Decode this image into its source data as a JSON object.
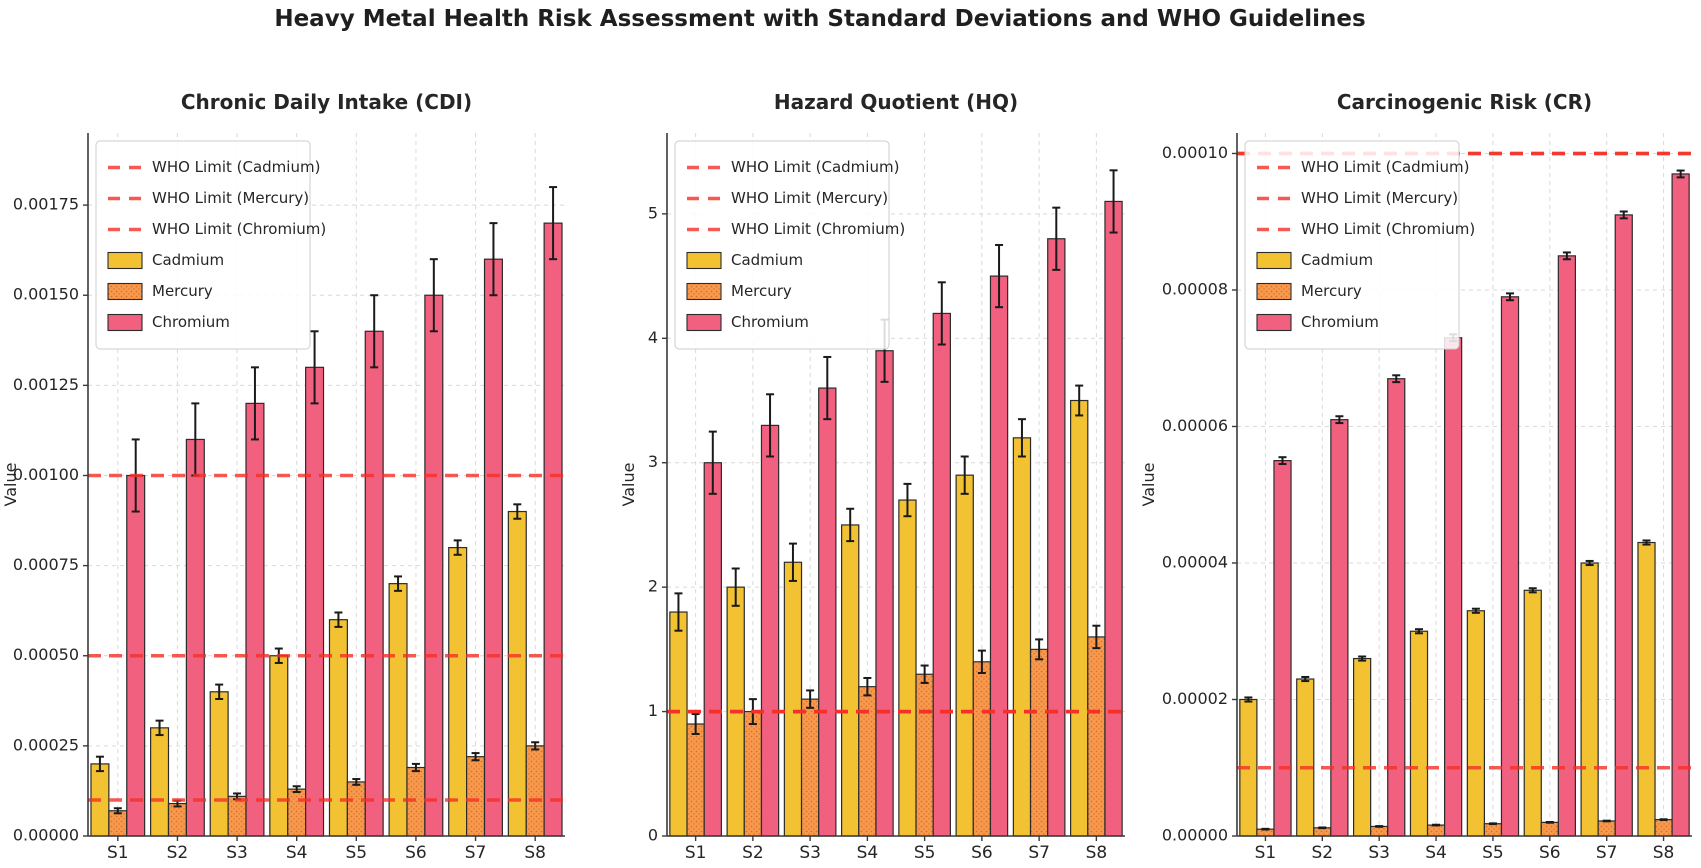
{
  "figure": {
    "title": "Heavy Metal Health Risk Assessment with Standard Deviations and WHO Guidelines",
    "background": "#ffffff"
  },
  "colors": {
    "cadmium": "#F3C233",
    "mercury": "#F79A4D",
    "mercury_dot": "#DD6F2A",
    "chromium": "#F2607F",
    "who_line": "#F53028",
    "bar_edge": "#2b2b2b",
    "error_bar": "#1a1a1a",
    "grid": "#d9d9d9",
    "axis": "#3a3a3a",
    "text": "#262626",
    "legend_border": "#cccccc",
    "legend_bg": "rgba(255,255,255,0.85)"
  },
  "legend": {
    "entries": [
      {
        "type": "line",
        "label": "WHO Limit (Cadmium)"
      },
      {
        "type": "line",
        "label": "WHO Limit (Mercury)"
      },
      {
        "type": "line",
        "label": "WHO Limit (Chromium)"
      },
      {
        "type": "patch",
        "label": "Cadmium",
        "color_key": "cadmium"
      },
      {
        "type": "patch",
        "label": "Mercury",
        "color_key": "mercury"
      },
      {
        "type": "patch",
        "label": "Chromium",
        "color_key": "chromium"
      }
    ]
  },
  "chart_data": [
    {
      "type": "bar",
      "title": "Chronic Daily Intake (CDI)",
      "ylabel": "Value",
      "xlabel": "",
      "categories": [
        "S1",
        "S2",
        "S3",
        "S4",
        "S5",
        "S6",
        "S7",
        "S8"
      ],
      "ylim": [
        0,
        0.00195
      ],
      "yticks": [
        0,
        0.00025,
        0.0005,
        0.00075,
        0.001,
        0.00125,
        0.0015,
        0.00175
      ],
      "ytick_labels": [
        "0.00000",
        "0.00025",
        "0.00050",
        "0.00075",
        "0.00100",
        "0.00125",
        "0.00150",
        "0.00175"
      ],
      "grid": true,
      "legend_position": "upper-left",
      "series": [
        {
          "name": "Cadmium",
          "color_key": "cadmium",
          "values": [
            0.0002,
            0.0003,
            0.0004,
            0.0005,
            0.0006,
            0.0007,
            0.0008,
            0.0009
          ],
          "errors": [
            2e-05,
            2e-05,
            2e-05,
            2e-05,
            2e-05,
            2e-05,
            2e-05,
            2e-05
          ]
        },
        {
          "name": "Mercury",
          "color_key": "mercury",
          "values": [
            7e-05,
            9e-05,
            0.00011,
            0.00013,
            0.00015,
            0.00019,
            0.00022,
            0.00025
          ],
          "errors": [
            7e-06,
            8e-06,
            8e-06,
            8e-06,
            8e-06,
            1e-05,
            1e-05,
            1e-05
          ]
        },
        {
          "name": "Chromium",
          "color_key": "chromium",
          "values": [
            0.001,
            0.0011,
            0.0012,
            0.0013,
            0.0014,
            0.0015,
            0.0016,
            0.0017
          ],
          "errors": [
            0.0001,
            0.0001,
            0.0001,
            0.0001,
            0.0001,
            0.0001,
            0.0001,
            0.0001
          ]
        }
      ],
      "who_limits": [
        {
          "label": "WHO Limit (Cadmium)",
          "value": 0.0005
        },
        {
          "label": "WHO Limit (Mercury)",
          "value": 0.0001
        },
        {
          "label": "WHO Limit (Chromium)",
          "value": 0.001
        }
      ]
    },
    {
      "type": "bar",
      "title": "Hazard Quotient (HQ)",
      "ylabel": "Value",
      "xlabel": "",
      "categories": [
        "S1",
        "S2",
        "S3",
        "S4",
        "S5",
        "S6",
        "S7",
        "S8"
      ],
      "ylim": [
        0,
        5.65
      ],
      "yticks": [
        0,
        1,
        2,
        3,
        4,
        5
      ],
      "ytick_labels": [
        "0",
        "1",
        "2",
        "3",
        "4",
        "5"
      ],
      "grid": true,
      "legend_position": "upper-left",
      "series": [
        {
          "name": "Cadmium",
          "color_key": "cadmium",
          "values": [
            1.8,
            2.0,
            2.2,
            2.5,
            2.7,
            2.9,
            3.2,
            3.5
          ],
          "errors": [
            0.15,
            0.15,
            0.15,
            0.13,
            0.13,
            0.15,
            0.15,
            0.12
          ]
        },
        {
          "name": "Mercury",
          "color_key": "mercury",
          "values": [
            0.9,
            1.0,
            1.1,
            1.2,
            1.3,
            1.4,
            1.5,
            1.6
          ],
          "errors": [
            0.08,
            0.1,
            0.07,
            0.07,
            0.07,
            0.09,
            0.08,
            0.09
          ]
        },
        {
          "name": "Chromium",
          "color_key": "chromium",
          "values": [
            3.0,
            3.3,
            3.6,
            3.9,
            4.2,
            4.5,
            4.8,
            5.1
          ],
          "errors": [
            0.25,
            0.25,
            0.25,
            0.25,
            0.25,
            0.25,
            0.25,
            0.25
          ]
        }
      ],
      "who_limits": [
        {
          "label": "WHO Limit (Cadmium)",
          "value": 1.0
        },
        {
          "label": "WHO Limit (Mercury)",
          "value": 1.0
        },
        {
          "label": "WHO Limit (Chromium)",
          "value": 1.0
        }
      ]
    },
    {
      "type": "bar",
      "title": "Carcinogenic Risk (CR)",
      "ylabel": "Value",
      "xlabel": "",
      "categories": [
        "S1",
        "S2",
        "S3",
        "S4",
        "S5",
        "S6",
        "S7",
        "S8"
      ],
      "ylim": [
        0,
        0.000103
      ],
      "yticks": [
        0,
        2e-05,
        4e-05,
        6e-05,
        8e-05,
        0.0001
      ],
      "ytick_labels": [
        "0.00000",
        "0.00002",
        "0.00004",
        "0.00006",
        "0.00008",
        "0.00010"
      ],
      "grid": true,
      "legend_position": "upper-left",
      "series": [
        {
          "name": "Cadmium",
          "color_key": "cadmium",
          "values": [
            2e-05,
            2.3e-05,
            2.6e-05,
            3e-05,
            3.3e-05,
            3.6e-05,
            4e-05,
            4.3e-05
          ],
          "errors": [
            3e-07,
            3e-07,
            3e-07,
            3e-07,
            3e-07,
            3e-07,
            3e-07,
            3e-07
          ]
        },
        {
          "name": "Mercury",
          "color_key": "mercury",
          "values": [
            1e-06,
            1.2e-06,
            1.4e-06,
            1.6e-06,
            1.8e-06,
            2e-06,
            2.2e-06,
            2.4e-06
          ],
          "errors": [
            5e-08,
            5e-08,
            5e-08,
            5e-08,
            5e-08,
            5e-08,
            5e-08,
            5e-08
          ]
        },
        {
          "name": "Chromium",
          "color_key": "chromium",
          "values": [
            5.5e-05,
            6.1e-05,
            6.7e-05,
            7.3e-05,
            7.9e-05,
            8.5e-05,
            9.1e-05,
            9.7e-05
          ],
          "errors": [
            5e-07,
            5e-07,
            5e-07,
            5e-07,
            5e-07,
            5e-07,
            5e-07,
            5e-07
          ]
        }
      ],
      "who_limits": [
        {
          "label": "WHO Limit (Cadmium)",
          "value": 0.0001
        },
        {
          "label": "WHO Limit (Mercury)",
          "value": 1e-05
        },
        {
          "label": "WHO Limit (Chromium)",
          "value": 0.0001
        }
      ]
    }
  ]
}
